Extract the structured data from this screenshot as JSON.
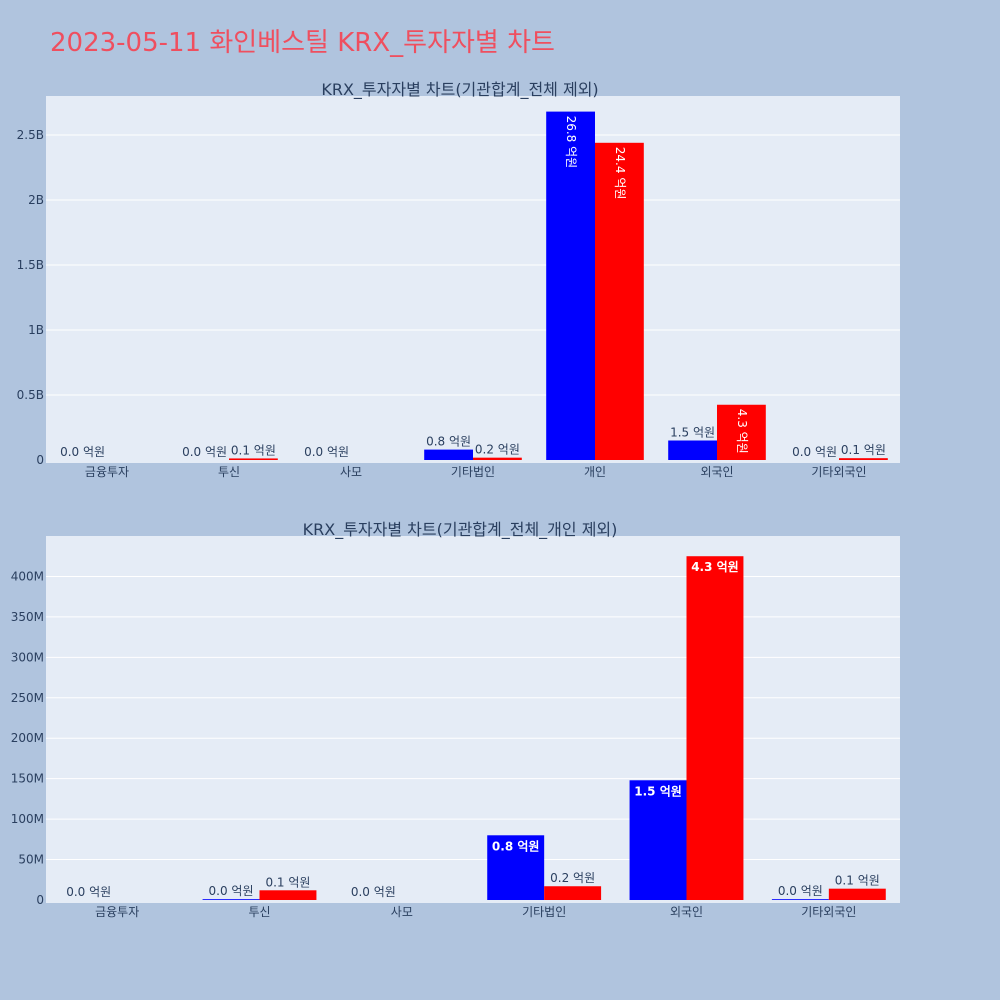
{
  "page": {
    "title": "2023-05-11 화인베스틸 KRX_투자자별 차트"
  },
  "colors": {
    "buy": "#0000ff",
    "sell": "#ff0000",
    "plot_bg": "#e5ecf6",
    "page_bg": "#b0c4de",
    "grid": "#ffffff",
    "title": "#ef4f5f",
    "text": "#2a3f5f"
  },
  "chart_data": [
    {
      "type": "bar",
      "title": "KRX_투자자별 차트(기관합계_전체 제외)",
      "categories": [
        "금융투자",
        "투신",
        "사모",
        "기타법인",
        "개인",
        "외국인",
        "기타외국인"
      ],
      "series": [
        {
          "values": [
            0,
            0,
            0,
            80000000,
            2680000000,
            150000000,
            0
          ],
          "labels": [
            "0.0 억원",
            "0.0 억원",
            "0.0 억원",
            "0.8 억원",
            "26.8 억원",
            "1.5 억원",
            "0.0 억원"
          ]
        },
        {
          "values": [
            0,
            12000000,
            0,
            18000000,
            2440000000,
            425000000,
            14000000
          ],
          "labels": [
            "",
            "0.1 억원",
            "",
            "0.2 억원",
            "24.4 억원",
            "4.3 억원",
            "0.1 억원"
          ]
        }
      ],
      "ylim": [
        0,
        2800000000
      ],
      "yticks": [
        0,
        500000000,
        1000000000,
        1500000000,
        2000000000,
        2500000000
      ],
      "ytick_labels": [
        "0",
        "0.5B",
        "1B",
        "1.5B",
        "2B",
        "2.5B"
      ],
      "grid": true,
      "legend": "none"
    },
    {
      "type": "bar",
      "title": "KRX_투자자별 차트(기관합계_전체_개인 제외)",
      "categories": [
        "금융투자",
        "투신",
        "사모",
        "기타법인",
        "외국인",
        "기타외국인"
      ],
      "series": [
        {
          "values": [
            0,
            1000000,
            0,
            80000000,
            148000000,
            1000000
          ],
          "labels": [
            "0.0 억원",
            "0.0 억원",
            "0.0 억원",
            "0.8 억원",
            "1.5 억원",
            "0.0 억원"
          ]
        },
        {
          "values": [
            0,
            12000000,
            0,
            17000000,
            425000000,
            14000000
          ],
          "labels": [
            "",
            "0.1 억원",
            "",
            "0.2 억원",
            "4.3 억원",
            "0.1 억원"
          ]
        }
      ],
      "ylim": [
        0,
        450000000
      ],
      "yticks": [
        0,
        50000000,
        100000000,
        150000000,
        200000000,
        250000000,
        300000000,
        350000000,
        400000000
      ],
      "ytick_labels": [
        "0",
        "50M",
        "100M",
        "150M",
        "200M",
        "250M",
        "300M",
        "350M",
        "400M"
      ],
      "grid": true,
      "legend": "none"
    }
  ]
}
